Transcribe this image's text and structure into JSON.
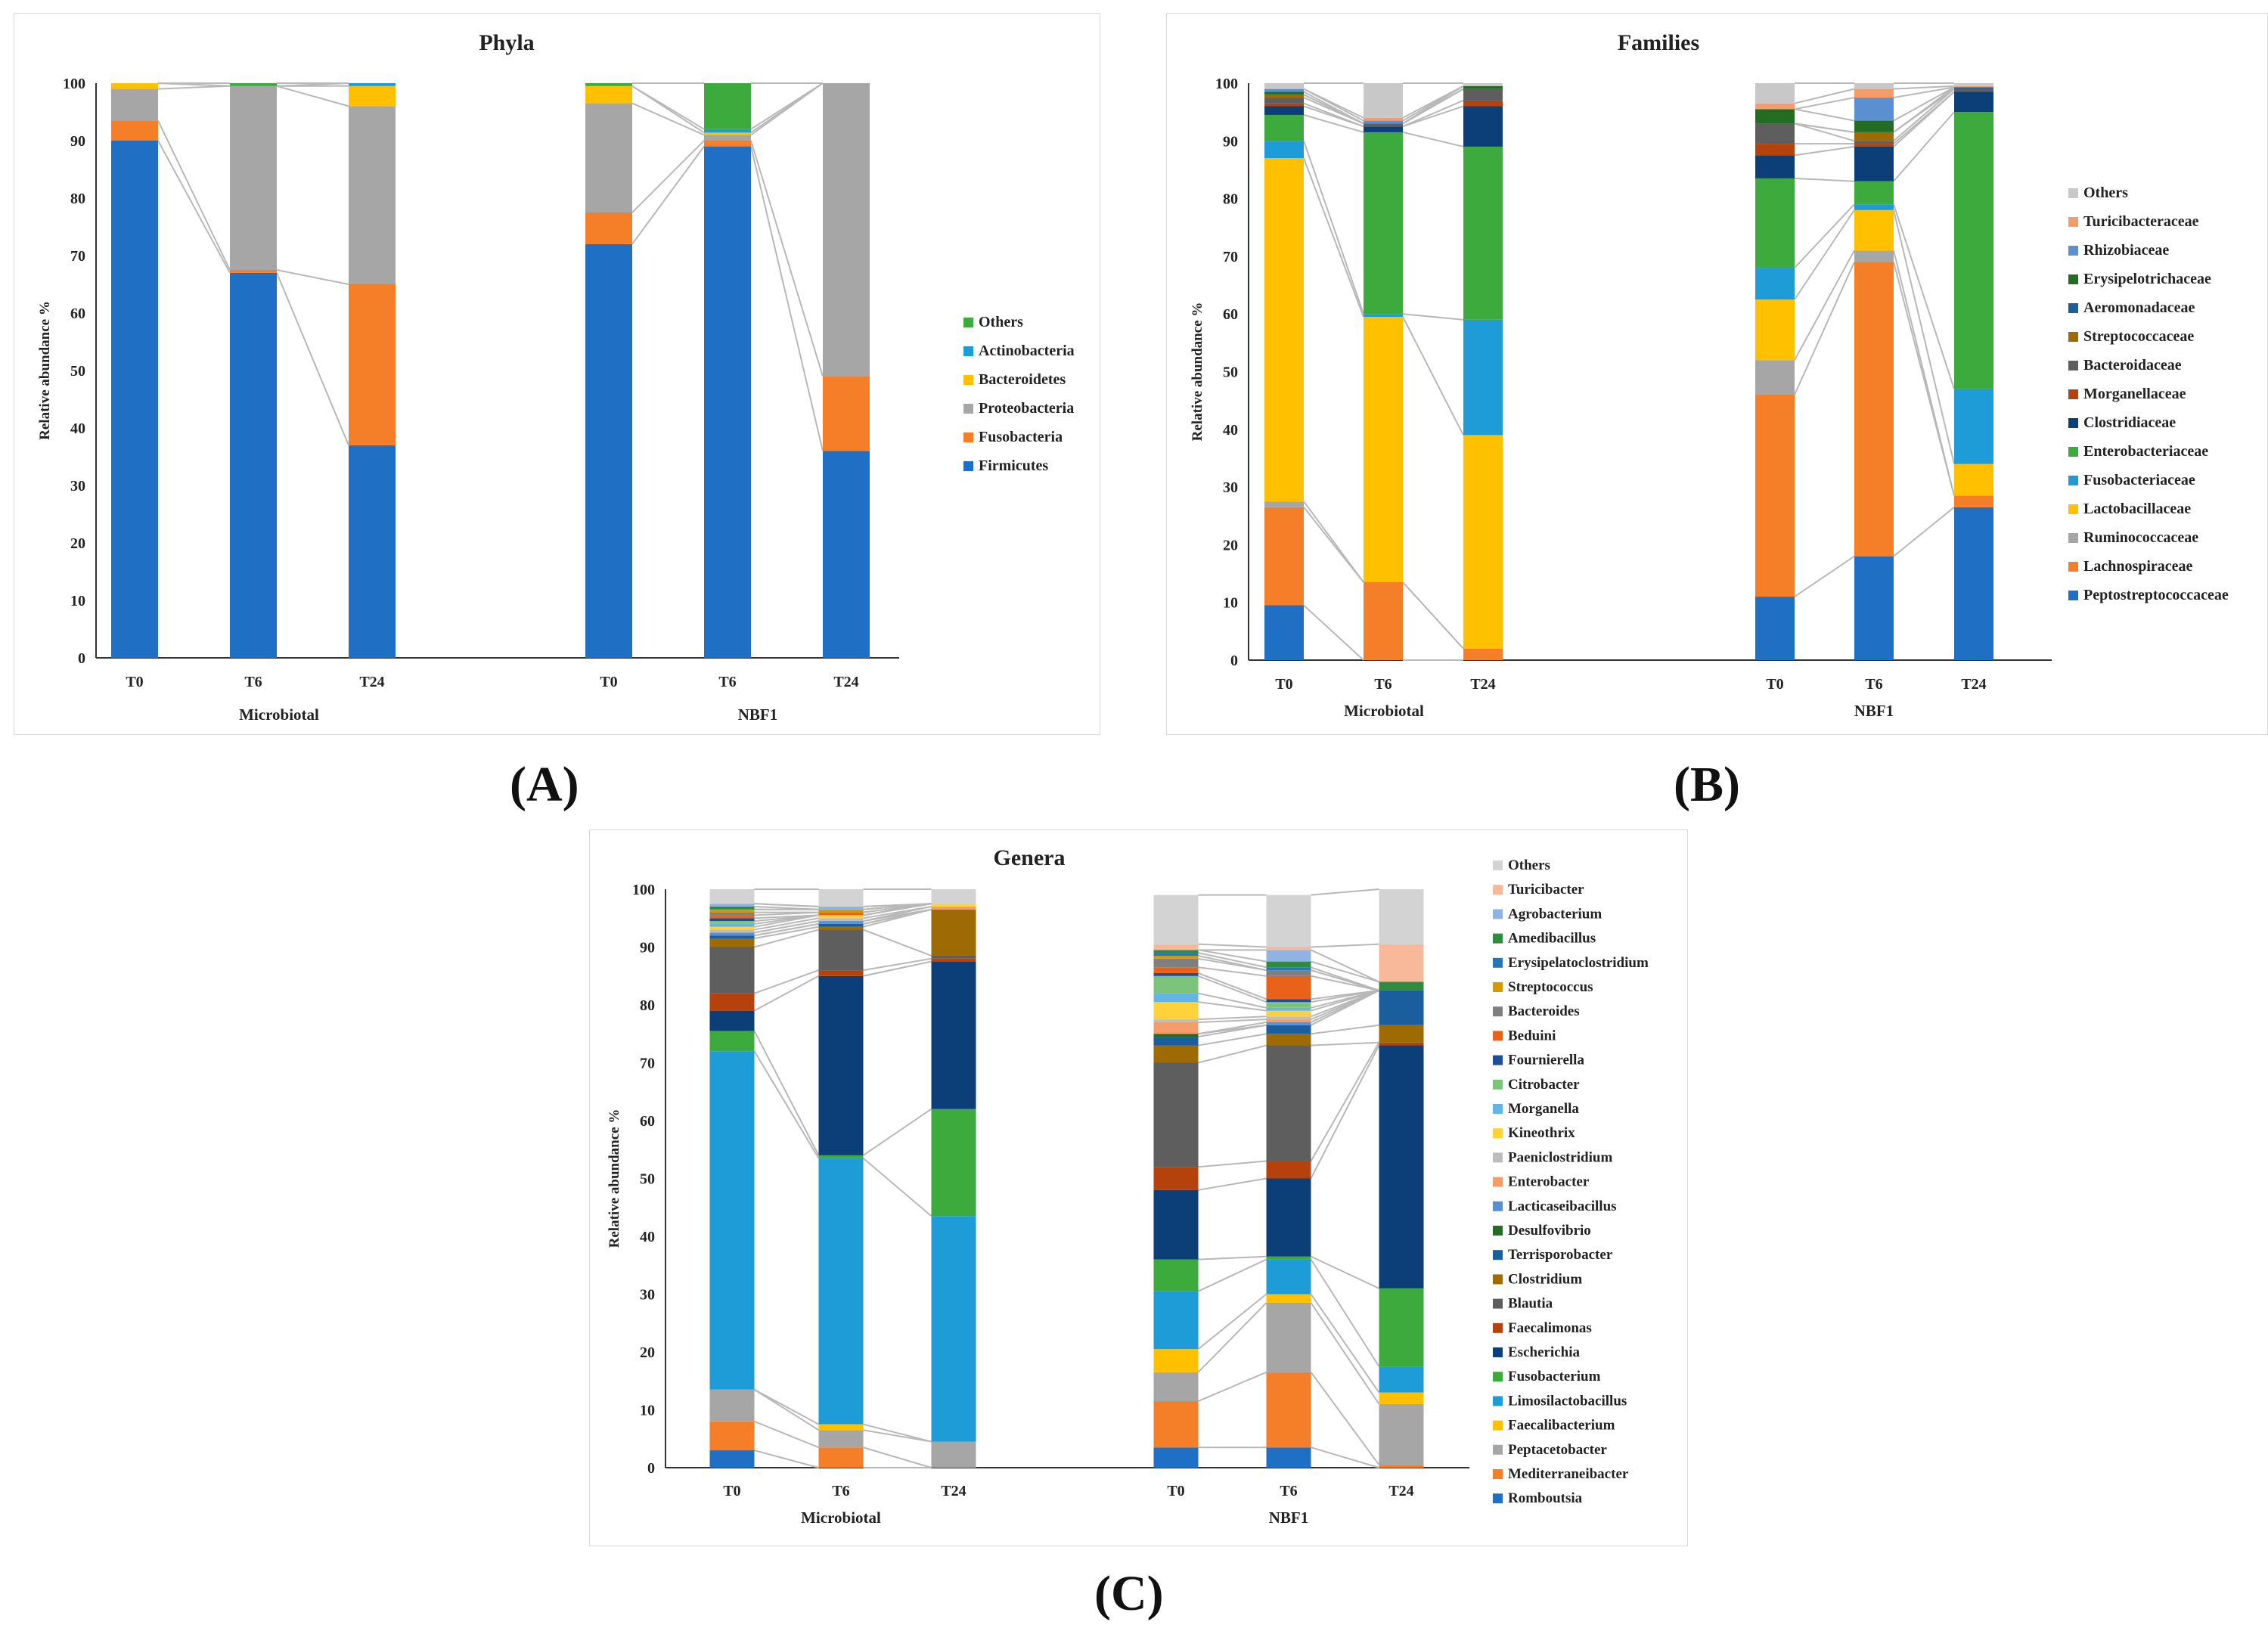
{
  "panel_labels": [
    "(A)",
    "(B)",
    "(C)"
  ],
  "chart_data": [
    {
      "type": "bar",
      "stacked": true,
      "title": "Phyla",
      "ylabel": "Relative abundance %",
      "ylim": [
        0,
        100
      ],
      "yticks": [
        0,
        10,
        20,
        30,
        40,
        50,
        60,
        70,
        80,
        90,
        100
      ],
      "groups": [
        {
          "name": "Microbiotal",
          "categories": [
            "T0",
            "T6",
            "T24"
          ]
        },
        {
          "name": "NBF1",
          "categories": [
            "T0",
            "T6",
            "T24"
          ]
        }
      ],
      "series": [
        {
          "name": "Firmicutes",
          "color": "#1f6fc5",
          "values": [
            90,
            67,
            37,
            72,
            89,
            36
          ]
        },
        {
          "name": "Fusobacteria",
          "color": "#f57f29",
          "values": [
            3.5,
            0.5,
            28,
            5.5,
            1,
            13
          ]
        },
        {
          "name": "Proteobacteria",
          "color": "#a6a6a6",
          "values": [
            5.5,
            32,
            31,
            19,
            1,
            51
          ]
        },
        {
          "name": "Bacteroidetes",
          "color": "#ffc000",
          "values": [
            1,
            0,
            3.5,
            3,
            0.4,
            0
          ]
        },
        {
          "name": "Actinobacteria",
          "color": "#1e9cd7",
          "values": [
            0,
            0,
            0.5,
            0,
            0.6,
            0
          ]
        },
        {
          "name": "Others",
          "color": "#3caa3c",
          "values": [
            0,
            0.5,
            0,
            0.5,
            8,
            0
          ]
        }
      ]
    },
    {
      "type": "bar",
      "stacked": true,
      "title": "Families",
      "ylabel": "Relative abundance %",
      "ylim": [
        0,
        100
      ],
      "yticks": [
        0,
        10,
        20,
        30,
        40,
        50,
        60,
        70,
        80,
        90,
        100
      ],
      "groups": [
        {
          "name": "Microbiotal",
          "categories": [
            "T0",
            "T6",
            "T24"
          ]
        },
        {
          "name": "NBF1",
          "categories": [
            "T0",
            "T6",
            "T24"
          ]
        }
      ],
      "series": [
        {
          "name": "Peptostreptococcaceae",
          "color": "#1f6fc5",
          "values": [
            9.5,
            0,
            0,
            11,
            18,
            26.5
          ]
        },
        {
          "name": "Lachnospiraceae",
          "color": "#f57f29",
          "values": [
            17,
            13.5,
            2,
            35,
            51,
            2
          ]
        },
        {
          "name": "Ruminococcaceae",
          "color": "#a6a6a6",
          "values": [
            1,
            0,
            0,
            6,
            2,
            0
          ]
        },
        {
          "name": "Lactobacillaceae",
          "color": "#ffc000",
          "values": [
            59.5,
            46,
            37,
            10.5,
            7,
            5.5
          ]
        },
        {
          "name": "Fusobacteriaceae",
          "color": "#1e9cd7",
          "values": [
            3,
            0.5,
            20,
            5.5,
            1,
            13
          ]
        },
        {
          "name": "Enterobacteriaceae",
          "color": "#3caa3c",
          "values": [
            4.5,
            31.5,
            30,
            15.5,
            4,
            48
          ]
        },
        {
          "name": "Clostridiaceae",
          "color": "#0c3f78",
          "values": [
            1.5,
            1,
            7,
            4,
            6,
            3.5
          ]
        },
        {
          "name": "Morganellaceae",
          "color": "#b5410c",
          "values": [
            0.5,
            0,
            1,
            2,
            0.5,
            0
          ]
        },
        {
          "name": "Bacteroidaceae",
          "color": "#5e5e5e",
          "values": [
            1,
            0.5,
            2,
            3.5,
            0.5,
            0.5
          ]
        },
        {
          "name": "Streptococcaceae",
          "color": "#9e6a03",
          "values": [
            0.5,
            0,
            0,
            0,
            1.5,
            0
          ]
        },
        {
          "name": "Aeromonadaceae",
          "color": "#1a5e9e",
          "values": [
            0,
            0,
            0,
            0,
            0,
            0.3
          ]
        },
        {
          "name": "Erysipelotrichaceae",
          "color": "#246b24",
          "values": [
            0.5,
            0,
            0.5,
            2.5,
            2,
            0
          ]
        },
        {
          "name": "Rhizobiaceae",
          "color": "#5a8fd0",
          "values": [
            0.5,
            0.5,
            0,
            0,
            4,
            0
          ]
        },
        {
          "name": "Turicibacteraceae",
          "color": "#f59d6a",
          "values": [
            0,
            0.5,
            0,
            1,
            1.5,
            0.2
          ]
        },
        {
          "name": "Others",
          "color": "#c8c8c8",
          "values": [
            1,
            6,
            0.5,
            3.5,
            1.5,
            0.5
          ]
        }
      ]
    },
    {
      "type": "bar",
      "stacked": true,
      "title": "Genera",
      "ylabel": "Relative abundance %",
      "ylim": [
        0,
        100
      ],
      "yticks": [
        0,
        10,
        20,
        30,
        40,
        50,
        60,
        70,
        80,
        90,
        100
      ],
      "groups": [
        {
          "name": "Microbiotal",
          "categories": [
            "T0",
            "T6",
            "T24"
          ]
        },
        {
          "name": "NBF1",
          "categories": [
            "T0",
            "T6",
            "T24"
          ]
        }
      ],
      "series": [
        {
          "name": "Romboutsia",
          "color": "#1f6fc5",
          "values": [
            3,
            0,
            0,
            3.5,
            3.5,
            0
          ]
        },
        {
          "name": "Mediterraneibacter",
          "color": "#f57f29",
          "values": [
            5,
            3.5,
            0,
            8,
            13,
            0.5
          ]
        },
        {
          "name": "Peptacetobacter",
          "color": "#a6a6a6",
          "values": [
            5.5,
            3,
            4.5,
            5,
            12,
            10.5
          ]
        },
        {
          "name": "Faecalibacterium",
          "color": "#ffc000",
          "values": [
            0,
            1,
            0,
            4,
            1.5,
            2
          ]
        },
        {
          "name": "Limosilactobacillus",
          "color": "#1e9cd7",
          "values": [
            58.5,
            46,
            39,
            10,
            6,
            4.5
          ]
        },
        {
          "name": "Fusobacterium",
          "color": "#3caa3c",
          "values": [
            3.5,
            0.5,
            18.5,
            5.5,
            0.5,
            13.5
          ]
        },
        {
          "name": "Escherichia",
          "color": "#0c3f78",
          "values": [
            3.5,
            31,
            25.5,
            12,
            13.5,
            42
          ]
        },
        {
          "name": "Faecalimonas",
          "color": "#b5410c",
          "values": [
            3,
            1,
            0.5,
            4,
            3,
            0.5
          ]
        },
        {
          "name": "Blautia",
          "color": "#5e5e5e",
          "values": [
            8,
            7,
            0.5,
            18,
            20,
            0
          ]
        },
        {
          "name": "Clostridium",
          "color": "#9e6a03",
          "values": [
            1.5,
            0.5,
            8,
            3,
            2,
            3
          ]
        },
        {
          "name": "Terrisporobacter",
          "color": "#1a5e9e",
          "values": [
            0.5,
            0.5,
            0,
            1.5,
            1.5,
            6
          ]
        },
        {
          "name": "Desulfovibrio",
          "color": "#246b24",
          "values": [
            0,
            0,
            0,
            0.5,
            0,
            0
          ]
        },
        {
          "name": "Lacticaseibacillus",
          "color": "#5a8fd0",
          "values": [
            0.5,
            0.5,
            0,
            0,
            0.5,
            0
          ]
        },
        {
          "name": "Enterobacter",
          "color": "#f59d6a",
          "values": [
            0,
            0,
            0.5,
            2,
            0.5,
            0
          ]
        },
        {
          "name": "Paeniclostridium",
          "color": "#bdbdbd",
          "values": [
            0.5,
            0.5,
            0,
            0.5,
            0.5,
            0
          ]
        },
        {
          "name": "Kineothrix",
          "color": "#ffd23c",
          "values": [
            0.5,
            0.5,
            0.5,
            3,
            1,
            0
          ]
        },
        {
          "name": "Morganella",
          "color": "#64b4e6",
          "values": [
            0.5,
            0,
            0,
            1.5,
            0.5,
            0
          ]
        },
        {
          "name": "Citrobacter",
          "color": "#7cc47c",
          "values": [
            0.5,
            0,
            0,
            3,
            1,
            0
          ]
        },
        {
          "name": "Fournierella",
          "color": "#1c4e9a",
          "values": [
            0.5,
            0,
            0,
            0.5,
            0.5,
            0
          ]
        },
        {
          "name": "Beduini",
          "color": "#e8621a",
          "values": [
            0.5,
            0.5,
            0,
            1,
            4,
            0
          ]
        },
        {
          "name": "Bacteroides",
          "color": "#7f7f7f",
          "values": [
            0.5,
            0,
            0,
            1.5,
            1,
            0
          ]
        },
        {
          "name": "Streptococcus",
          "color": "#d49a00",
          "values": [
            0.5,
            0.5,
            0,
            0.5,
            0,
            0
          ]
        },
        {
          "name": "Erysipelatoclostridium",
          "color": "#2478b8",
          "values": [
            0,
            0,
            0,
            0.5,
            0.5,
            0
          ]
        },
        {
          "name": "Amedibacillus",
          "color": "#2e8b40",
          "values": [
            0.5,
            0,
            0,
            0.5,
            1,
            1.5
          ]
        },
        {
          "name": "Agrobacterium",
          "color": "#8fb4e3",
          "values": [
            0.5,
            0.5,
            0,
            0,
            2,
            0
          ]
        },
        {
          "name": "Turicibacter",
          "color": "#f7b99a",
          "values": [
            0,
            0,
            0,
            1,
            0.5,
            6.5
          ]
        },
        {
          "name": "Others",
          "color": "#d3d3d3",
          "values": [
            4,
            3.5,
            2.5,
            8.5,
            9,
            9.5
          ]
        }
      ]
    }
  ]
}
